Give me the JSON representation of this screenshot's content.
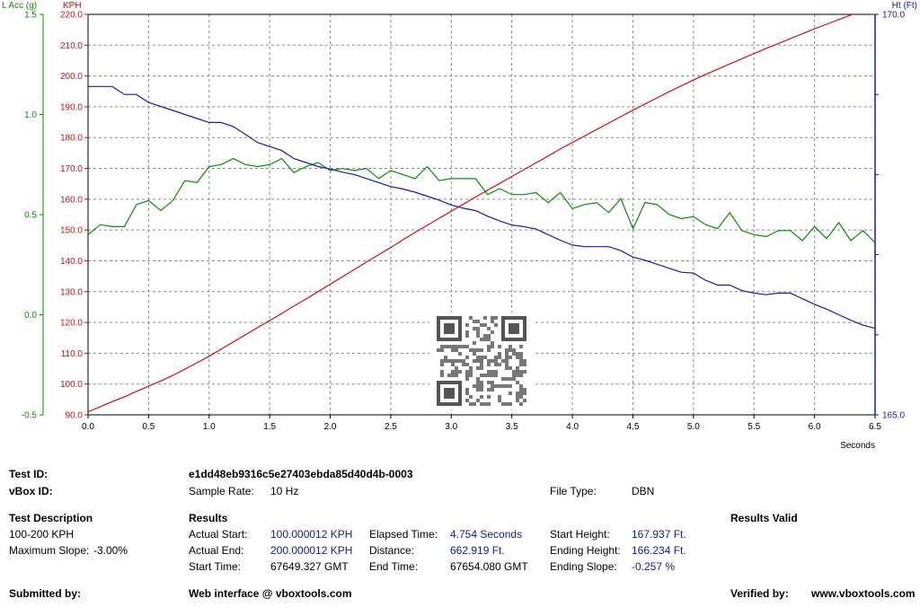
{
  "chart_data": {
    "type": "line",
    "x_unit_label": "Seconds",
    "x_range": [
      0,
      6.5
    ],
    "x_ticks": [
      "0.0",
      "0.5",
      "1.0",
      "1.5",
      "2.0",
      "2.5",
      "3.0",
      "3.5",
      "4.0",
      "4.5",
      "5.0",
      "5.5",
      "6.0",
      "6.5"
    ],
    "axes": {
      "left_outer": {
        "label": "L Acc (g)",
        "color": "#0b8a0b",
        "range": [
          -0.5,
          1.5
        ],
        "ticks": [
          "1.5",
          "1.0",
          "0.5",
          "0.0",
          "-0.5"
        ]
      },
      "left_inner": {
        "label": "KPH",
        "color": "#cc1111",
        "range": [
          90,
          220
        ],
        "ticks": [
          "220.0",
          "210.0",
          "200.0",
          "190.0",
          "180.0",
          "170.0",
          "160.0",
          "150.0",
          "140.0",
          "130.0",
          "120.0",
          "110.0",
          "100.0",
          "90.0"
        ]
      },
      "right": {
        "label": "Ht (Ft)",
        "color": "#1a1aa6",
        "range": [
          165,
          170
        ],
        "ticks": [
          "170.0",
          "165.0"
        ]
      }
    },
    "grid": true,
    "series": [
      {
        "axis": "left_inner",
        "color": "#cc1111",
        "x": [
          0.0,
          0.1,
          0.2,
          0.3,
          0.4,
          0.5,
          0.6,
          0.7,
          0.8,
          0.9,
          1.0,
          1.1,
          1.2,
          1.3,
          1.4,
          1.5,
          1.6,
          1.7,
          1.8,
          1.9,
          2.0,
          2.1,
          2.2,
          2.3,
          2.4,
          2.5,
          2.6,
          2.7,
          2.8,
          2.9,
          3.0,
          3.1,
          3.2,
          3.3,
          3.4,
          3.5,
          3.6,
          3.7,
          3.8,
          3.9,
          4.0,
          4.1,
          4.2,
          4.3,
          4.4,
          4.5,
          4.6,
          4.7,
          4.8,
          4.9,
          5.0,
          5.1,
          5.2,
          5.3,
          5.4,
          5.5,
          5.6,
          5.7,
          5.8,
          5.9,
          6.0,
          6.1,
          6.2,
          6.3,
          6.4,
          6.5
        ],
        "values": [
          91.0,
          92.6,
          94.3,
          95.8,
          97.6,
          99.3,
          101.0,
          102.8,
          104.8,
          106.9,
          109.0,
          111.3,
          113.7,
          116.0,
          118.3,
          120.6,
          122.9,
          125.3,
          127.6,
          130.0,
          132.4,
          134.8,
          137.2,
          139.6,
          142.0,
          144.3,
          146.8,
          149.2,
          151.5,
          153.8,
          156.1,
          158.4,
          160.7,
          162.9,
          165.1,
          167.4,
          169.6,
          171.8,
          174.0,
          176.3,
          178.4,
          180.5,
          182.6,
          184.7,
          186.8,
          188.9,
          190.9,
          192.9,
          194.9,
          196.8,
          198.7,
          200.5,
          202.2,
          203.9,
          205.6,
          207.3,
          208.9,
          210.5,
          212.1,
          213.7,
          215.3,
          216.8,
          218.3,
          219.8,
          221.3,
          222.8
        ]
      },
      {
        "axis": "left_outer",
        "color": "#0b8a0b",
        "x": [
          0.0,
          0.1,
          0.2,
          0.3,
          0.4,
          0.5,
          0.6,
          0.7,
          0.8,
          0.9,
          1.0,
          1.1,
          1.2,
          1.3,
          1.4,
          1.5,
          1.6,
          1.7,
          1.8,
          1.9,
          2.0,
          2.1,
          2.2,
          2.3,
          2.4,
          2.5,
          2.6,
          2.7,
          2.8,
          2.9,
          3.0,
          3.1,
          3.2,
          3.3,
          3.4,
          3.5,
          3.6,
          3.7,
          3.8,
          3.9,
          4.0,
          4.1,
          4.2,
          4.3,
          4.4,
          4.5,
          4.6,
          4.7,
          4.8,
          4.9,
          5.0,
          5.1,
          5.2,
          5.3,
          5.4,
          5.5,
          5.6,
          5.7,
          5.8,
          5.9,
          6.0,
          6.1,
          6.2,
          6.3,
          6.4,
          6.5
        ],
        "values": [
          0.4,
          0.45,
          0.44,
          0.44,
          0.55,
          0.57,
          0.52,
          0.57,
          0.67,
          0.66,
          0.74,
          0.75,
          0.78,
          0.75,
          0.74,
          0.75,
          0.78,
          0.71,
          0.74,
          0.76,
          0.72,
          0.73,
          0.72,
          0.73,
          0.68,
          0.72,
          0.7,
          0.68,
          0.74,
          0.67,
          0.68,
          0.68,
          0.68,
          0.6,
          0.63,
          0.6,
          0.6,
          0.61,
          0.56,
          0.61,
          0.53,
          0.55,
          0.56,
          0.51,
          0.58,
          0.43,
          0.56,
          0.55,
          0.5,
          0.48,
          0.49,
          0.45,
          0.43,
          0.51,
          0.42,
          0.4,
          0.39,
          0.42,
          0.42,
          0.37,
          0.44,
          0.38,
          0.46,
          0.37,
          0.42,
          0.36
        ]
      },
      {
        "axis": "right",
        "color": "#1a1aa6",
        "x": [
          0.0,
          0.1,
          0.2,
          0.3,
          0.4,
          0.5,
          0.6,
          0.7,
          0.8,
          0.9,
          1.0,
          1.1,
          1.2,
          1.3,
          1.4,
          1.5,
          1.6,
          1.7,
          1.8,
          1.9,
          2.0,
          2.1,
          2.2,
          2.3,
          2.4,
          2.5,
          2.6,
          2.7,
          2.8,
          2.9,
          3.0,
          3.1,
          3.2,
          3.3,
          3.4,
          3.5,
          3.6,
          3.7,
          3.8,
          3.9,
          4.0,
          4.1,
          4.2,
          4.3,
          4.4,
          4.5,
          4.6,
          4.7,
          4.8,
          4.9,
          5.0,
          5.1,
          5.2,
          5.3,
          5.4,
          5.5,
          5.6,
          5.7,
          5.8,
          5.9,
          6.0,
          6.1,
          6.2,
          6.3,
          6.4,
          6.5
        ],
        "values": [
          169.1,
          169.1,
          169.1,
          169.0,
          169.0,
          168.9,
          168.85,
          168.8,
          168.75,
          168.7,
          168.65,
          168.65,
          168.6,
          168.5,
          168.4,
          168.35,
          168.3,
          168.2,
          168.15,
          168.1,
          168.07,
          168.03,
          168.0,
          167.95,
          167.9,
          167.85,
          167.82,
          167.78,
          167.73,
          167.68,
          167.62,
          167.58,
          167.55,
          167.48,
          167.42,
          167.37,
          167.35,
          167.32,
          167.25,
          167.18,
          167.12,
          167.1,
          167.1,
          167.1,
          167.05,
          166.97,
          166.93,
          166.88,
          166.83,
          166.78,
          166.77,
          166.68,
          166.62,
          166.62,
          166.55,
          166.52,
          166.5,
          166.52,
          166.52,
          166.45,
          166.38,
          166.32,
          166.25,
          166.18,
          166.12,
          166.08
        ]
      }
    ]
  },
  "info": {
    "test_id_label": "Test ID:",
    "test_id_value": "e1dd48eb9316c5e27403ebda85d40d4b-0003",
    "vbox_id_label": "vBox ID:",
    "sample_rate_label": "Sample Rate:",
    "sample_rate_value": "10 Hz",
    "file_type_label": "File Type:",
    "file_type_value": "DBN",
    "test_description_label": "Test Description",
    "test_description_value": "100-200 KPH",
    "max_slope_label": "Maximum Slope:",
    "max_slope_value": "-3.00%",
    "results_label": "Results",
    "results_valid_label": "Results Valid",
    "actual_start_label": "Actual Start:",
    "actual_start_value": "100.000012 KPH",
    "actual_end_label": "Actual End:",
    "actual_end_value": "200.000012 KPH",
    "start_time_label": "Start Time:",
    "start_time_value": "67649.327 GMT",
    "elapsed_time_label": "Elapsed Time:",
    "elapsed_time_value": "4.754 Seconds",
    "distance_label": "Distance:",
    "distance_value": "662.919 Ft.",
    "end_time_label": "End Time:",
    "end_time_value": "67654.080 GMT",
    "start_height_label": "Start Height:",
    "start_height_value": "167.937 Ft.",
    "ending_height_label": "Ending Height:",
    "ending_height_value": "166.234 Ft.",
    "ending_slope_label": "Ending Slope:",
    "ending_slope_value": "-0.257 %",
    "submitted_by_label": "Submitted by:",
    "web_interface_label": "Web interface @ vboxtools.com",
    "verified_by_label": "Verified by:",
    "website": "www.vboxtools.com"
  }
}
